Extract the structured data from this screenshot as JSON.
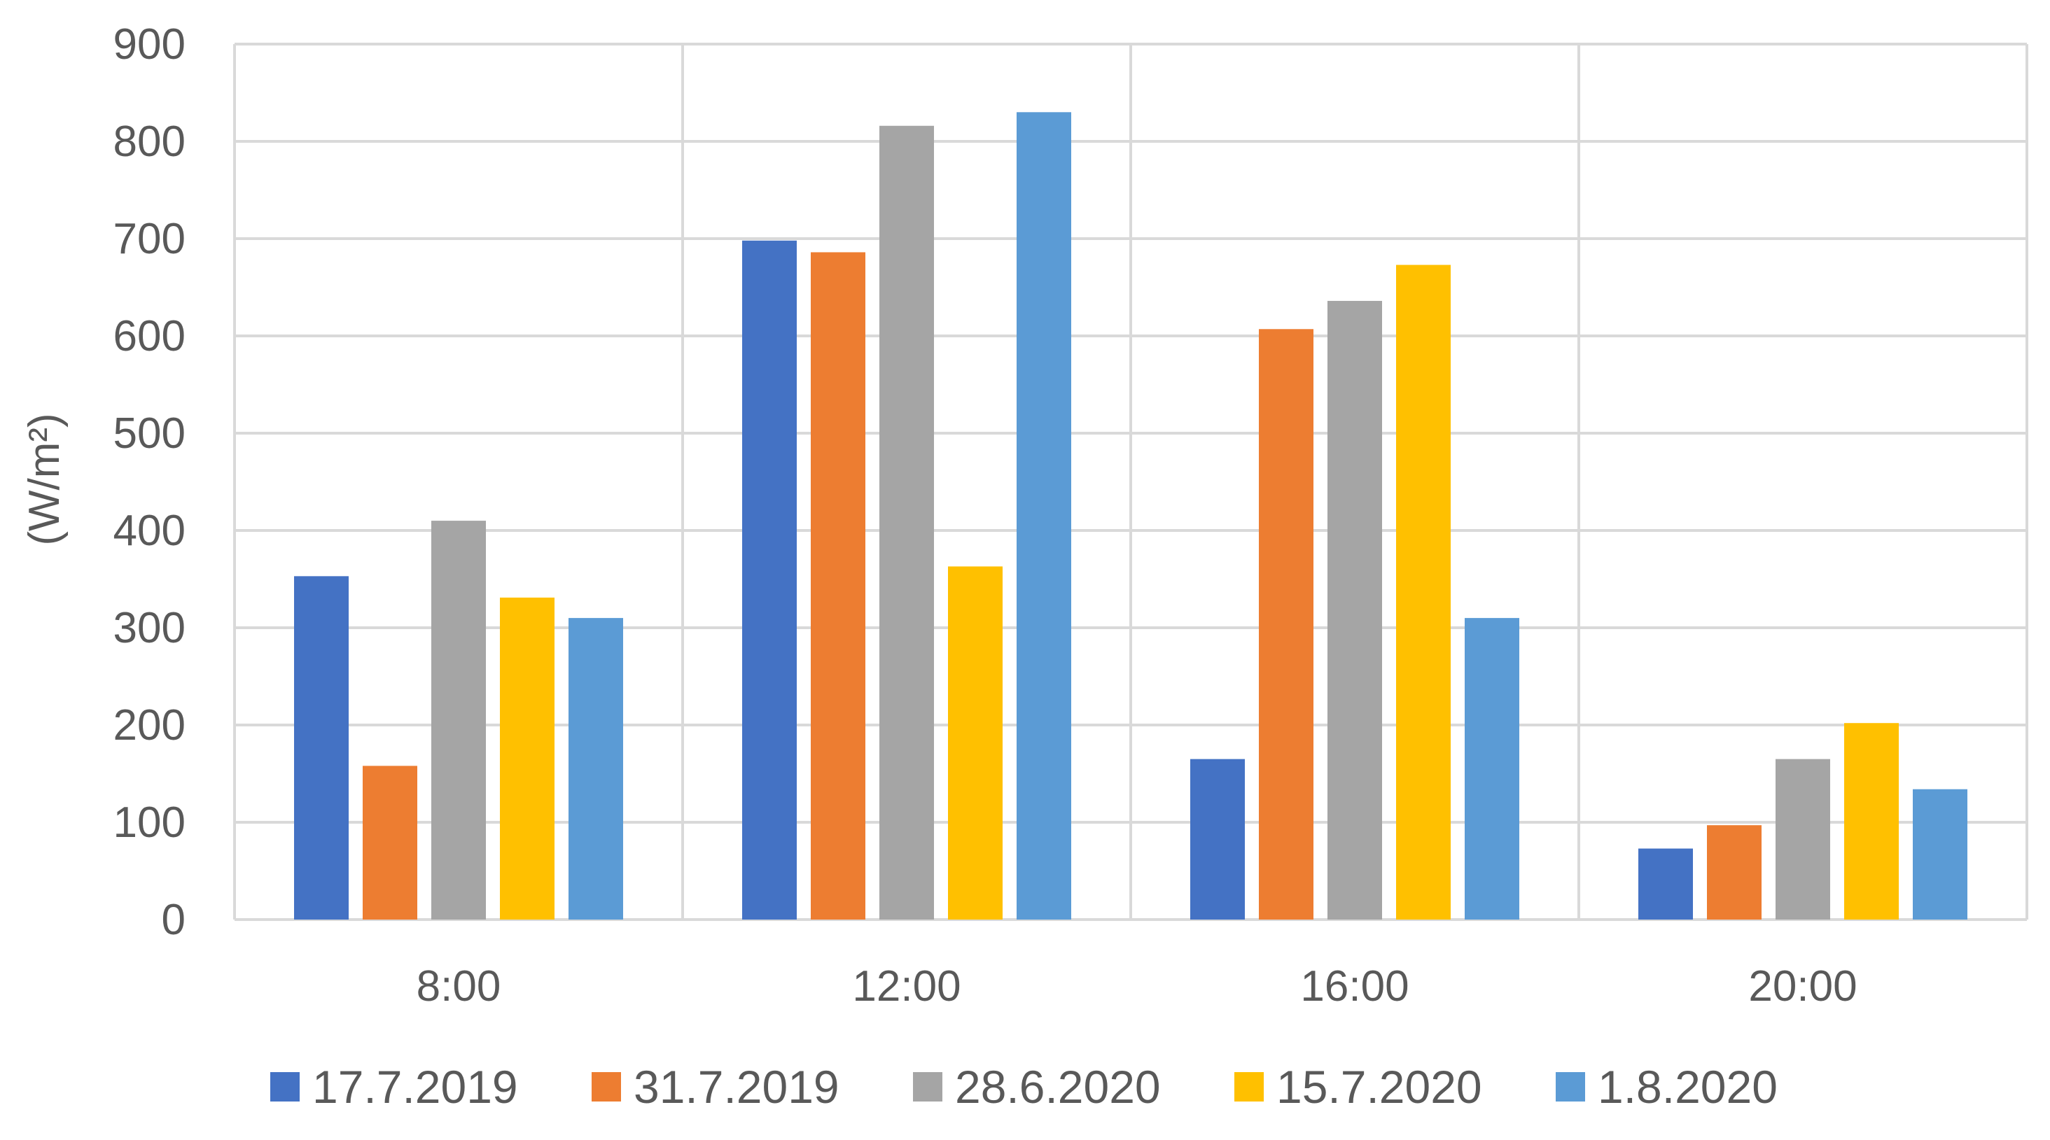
{
  "chart_data": {
    "type": "bar",
    "title": "",
    "xlabel": "",
    "ylabel": "(W/m²)",
    "categories": [
      "8:00",
      "12:00",
      "16:00",
      "20:00"
    ],
    "ylim": [
      0,
      900
    ],
    "yticks": [
      0,
      100,
      200,
      300,
      400,
      500,
      600,
      700,
      800,
      900
    ],
    "grid": true,
    "legend_position": "bottom",
    "series": [
      {
        "name": "17.7.2019",
        "color": "#4472C4",
        "values": [
          353,
          698,
          165,
          73
        ]
      },
      {
        "name": "31.7.2019",
        "color": "#ED7D31",
        "values": [
          158,
          686,
          607,
          97
        ]
      },
      {
        "name": "28.6.2020",
        "color": "#A5A5A5",
        "values": [
          410,
          816,
          636,
          165
        ]
      },
      {
        "name": "15.7.2020",
        "color": "#FFC000",
        "values": [
          331,
          363,
          673,
          202
        ]
      },
      {
        "name": "1.8.2020",
        "color": "#5B9BD5",
        "values": [
          310,
          830,
          310,
          134
        ]
      }
    ]
  }
}
